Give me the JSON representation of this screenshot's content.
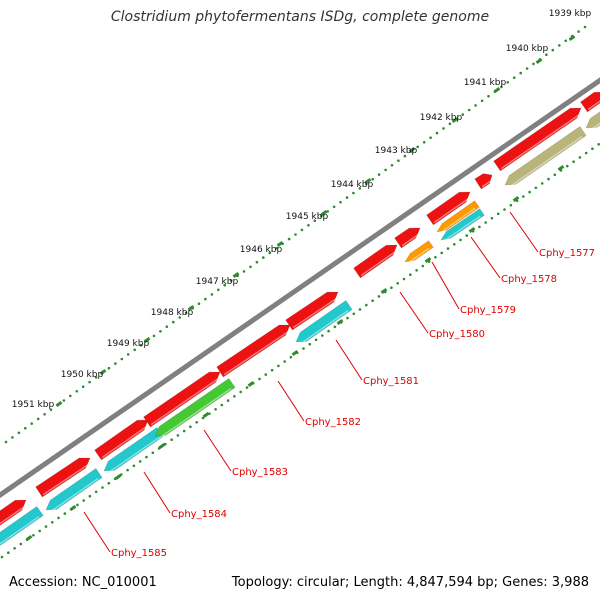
{
  "title": "Clostridium phytofermentans ISDg, complete genome",
  "accession": "Accession: NC_010001",
  "summary": "Topology: circular; Length: 4,847,594 bp; Genes: 3,988",
  "colors": {
    "backbone": "#808080",
    "gene_red": "#ee1111",
    "gene_cyan": "#22c8cc",
    "gene_green": "#44c833",
    "gene_orange": "#ff9900",
    "gene_olive": "#b8b47a",
    "tick_green": "#2e8b2e",
    "label_red": "#dd0000"
  },
  "ruler_ticks": [
    "1939 kbp",
    "1940 kbp",
    "1941 kbp",
    "1942 kbp",
    "1943 kbp",
    "1944 kbp",
    "1945 kbp",
    "1946 kbp",
    "1947 kbp",
    "1948 kbp",
    "1949 kbp",
    "1950 kbp",
    "1951 kbp"
  ],
  "gene_labels": [
    "Cphy_1577",
    "Cphy_1578",
    "Cphy_1579",
    "Cphy_1580",
    "Cphy_1581",
    "Cphy_1582",
    "Cphy_1583",
    "Cphy_1584",
    "Cphy_1585"
  ]
}
